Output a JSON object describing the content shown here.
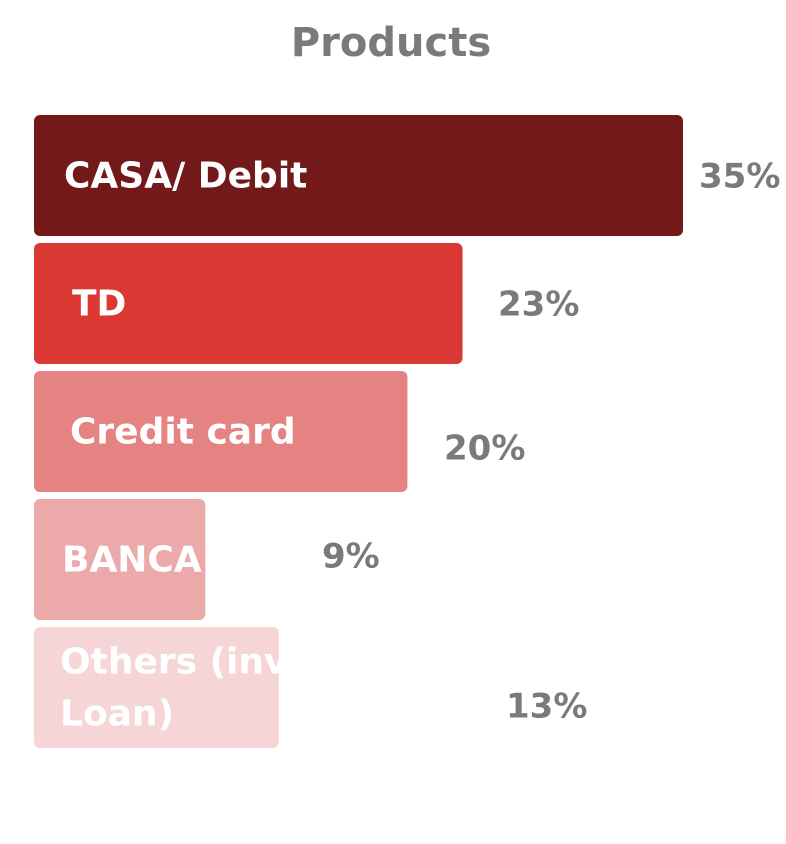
{
  "chart_data": {
    "type": "bar",
    "orientation": "horizontal",
    "title": "Products",
    "xlabel": "",
    "ylabel": "",
    "xlim": [
      0,
      35
    ],
    "grid": false,
    "legend": "none",
    "categories": [
      "CASA/ Debit",
      "TD",
      "Credit card",
      "BANCA",
      "Others (investment,\nLoan)"
    ],
    "values": [
      35,
      23,
      20,
      9,
      13
    ],
    "value_labels": [
      "35%",
      "23%",
      "20%",
      "9%",
      "13%"
    ],
    "bar_colors": [
      "#731919",
      "#db3733",
      "#e58282",
      "#eba9a9",
      "#f6d5d7"
    ],
    "label_color": "#ffffff",
    "value_label_color": "#7a7a7a",
    "title_color": "#7a7a7a"
  }
}
